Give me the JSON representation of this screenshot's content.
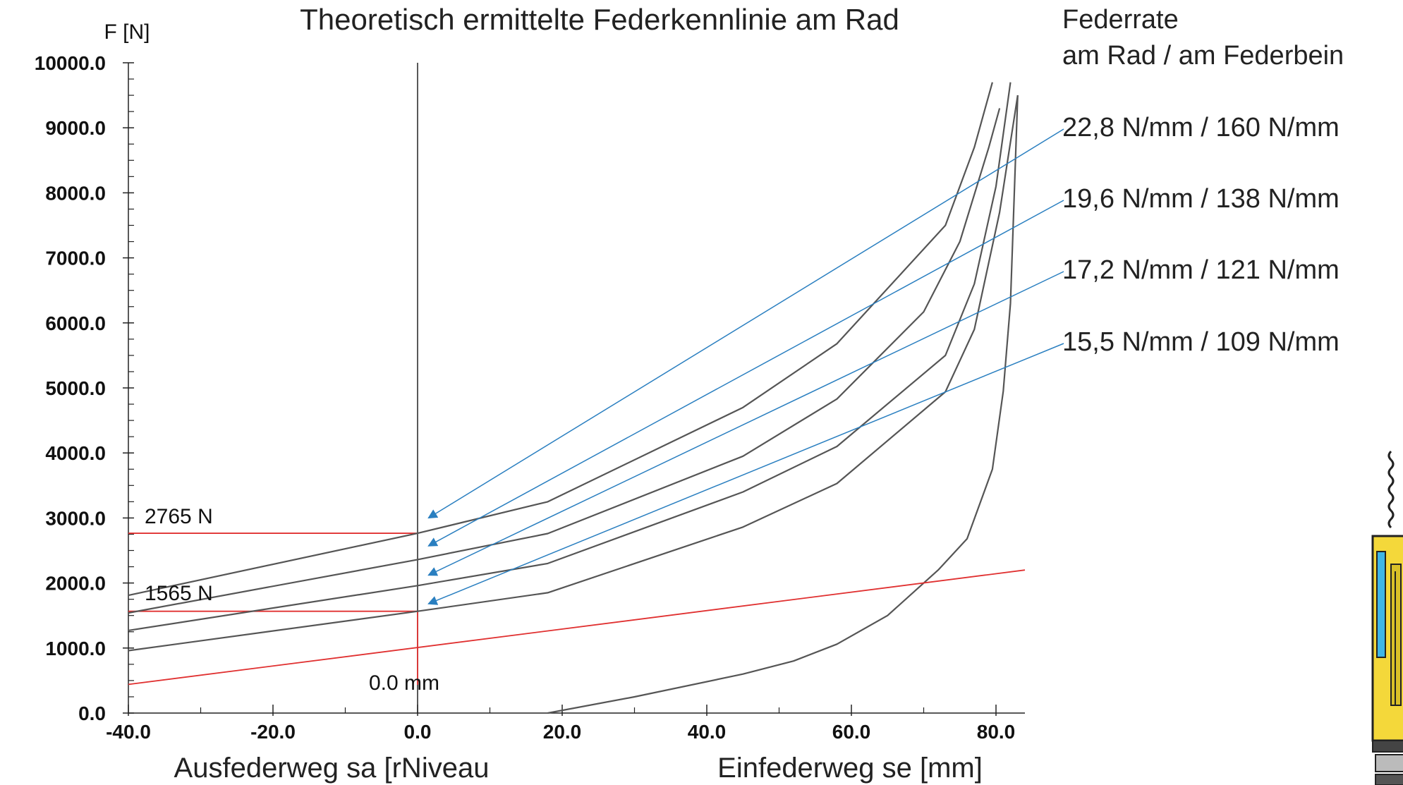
{
  "chart_data": {
    "type": "line",
    "title": "Theoretisch ermittelte Federkennlinie am Rad",
    "ylabel": "F [N]",
    "xlabel_left": "Ausfederweg sa [rNiveau",
    "xlabel_right": "Einfederweg se [mm]",
    "xlim": [
      -40,
      84
    ],
    "ylim": [
      0,
      10000
    ],
    "x_ticks": [
      -40,
      -20,
      0,
      20,
      40,
      60,
      80
    ],
    "x_tick_labels": [
      "-40.0",
      "-20.0",
      "0.0",
      "20.0",
      "40.0",
      "60.0",
      "80.0"
    ],
    "y_ticks": [
      0,
      1000,
      2000,
      3000,
      4000,
      5000,
      6000,
      7000,
      8000,
      9000,
      10000
    ],
    "y_tick_labels": [
      "0.0",
      "1000.0",
      "2000.0",
      "3000.0",
      "4000.0",
      "5000.0",
      "6000.0",
      "7000.0",
      "8000.0",
      "9000.0",
      "10000.0"
    ],
    "legend_header": [
      "Federrate",
      "am Rad / am Federbein"
    ],
    "series": [
      {
        "name": "22,8 N/mm  / 160 N/mm",
        "color": "#555555",
        "x": [
          -40,
          0,
          18,
          45,
          58,
          73,
          77,
          79.5
        ],
        "y": [
          1810,
          2765,
          3250,
          4700,
          5680,
          7500,
          8700,
          9700
        ]
      },
      {
        "name": "19,6 N/mm  / 138 N/mm",
        "color": "#555555",
        "x": [
          -40,
          0,
          18,
          45,
          58,
          70,
          75,
          79,
          80.5
        ],
        "y": [
          1540,
          2360,
          2760,
          3950,
          4830,
          6170,
          7250,
          8700,
          9300
        ]
      },
      {
        "name": "17,2 N/mm  / 121 N/mm",
        "color": "#555555",
        "x": [
          -40,
          0,
          18,
          45,
          58,
          73,
          77,
          80,
          82
        ],
        "y": [
          1270,
          1960,
          2300,
          3400,
          4100,
          5500,
          6600,
          8100,
          9700
        ]
      },
      {
        "name": "15,5 N/mm / 109 N/mm",
        "color": "#555555",
        "x": [
          -40,
          0,
          18,
          45,
          58,
          73,
          77,
          80.5,
          83
        ],
        "y": [
          960,
          1565,
          1850,
          2860,
          3530,
          4940,
          5900,
          7700,
          9500
        ]
      },
      {
        "name": "",
        "color": "#555555",
        "x": [
          18,
          30,
          45,
          52,
          58,
          65,
          72,
          76,
          79.5,
          81,
          82,
          83
        ],
        "y": [
          0,
          250,
          600,
          800,
          1060,
          1500,
          2200,
          2680,
          3750,
          4950,
          6300,
          9500
        ]
      },
      {
        "name": "",
        "color": "#e03030",
        "x": [
          -40,
          84
        ],
        "y": [
          440,
          2200
        ]
      }
    ],
    "annotations": {
      "force_1": "2765 N",
      "force_2": "1565 N",
      "zero_label": "0.0 mm",
      "force_1_value": 2765,
      "force_2_value": 1565
    },
    "arrow_targets": [
      {
        "x": 1.5,
        "y": 3000
      },
      {
        "x": 1.5,
        "y": 2570
      },
      {
        "x": 1.5,
        "y": 2120
      },
      {
        "x": 1.5,
        "y": 1680
      }
    ],
    "colors": {
      "curve": "#555555",
      "red": "#e03030",
      "leader": "#2a7fc0",
      "axis": "#222222"
    }
  }
}
